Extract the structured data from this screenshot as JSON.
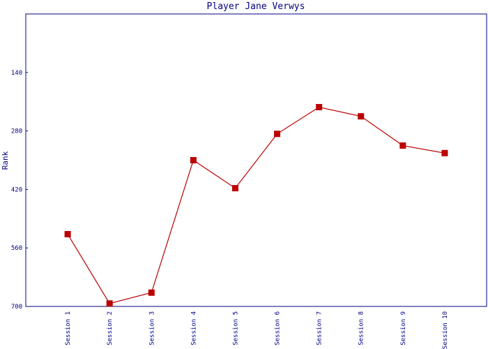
{
  "chart_data": {
    "type": "line",
    "title": "Player Jane Verwys",
    "y_label": "Rank",
    "categories": [
      "Session 1",
      "Session 2",
      "Session 3",
      "Session 4",
      "Session 5",
      "Session 6",
      "Session 7",
      "Session 8",
      "Session 9",
      "Session 10"
    ],
    "series": [
      {
        "name": "Rank",
        "color": "#bb0000",
        "values": [
          527,
          693,
          667,
          350,
          417,
          287,
          223,
          245,
          315,
          333
        ]
      }
    ],
    "ylim": [
      700,
      0
    ],
    "yticks": [
      700,
      560,
      420,
      280,
      140
    ],
    "grid": false
  }
}
